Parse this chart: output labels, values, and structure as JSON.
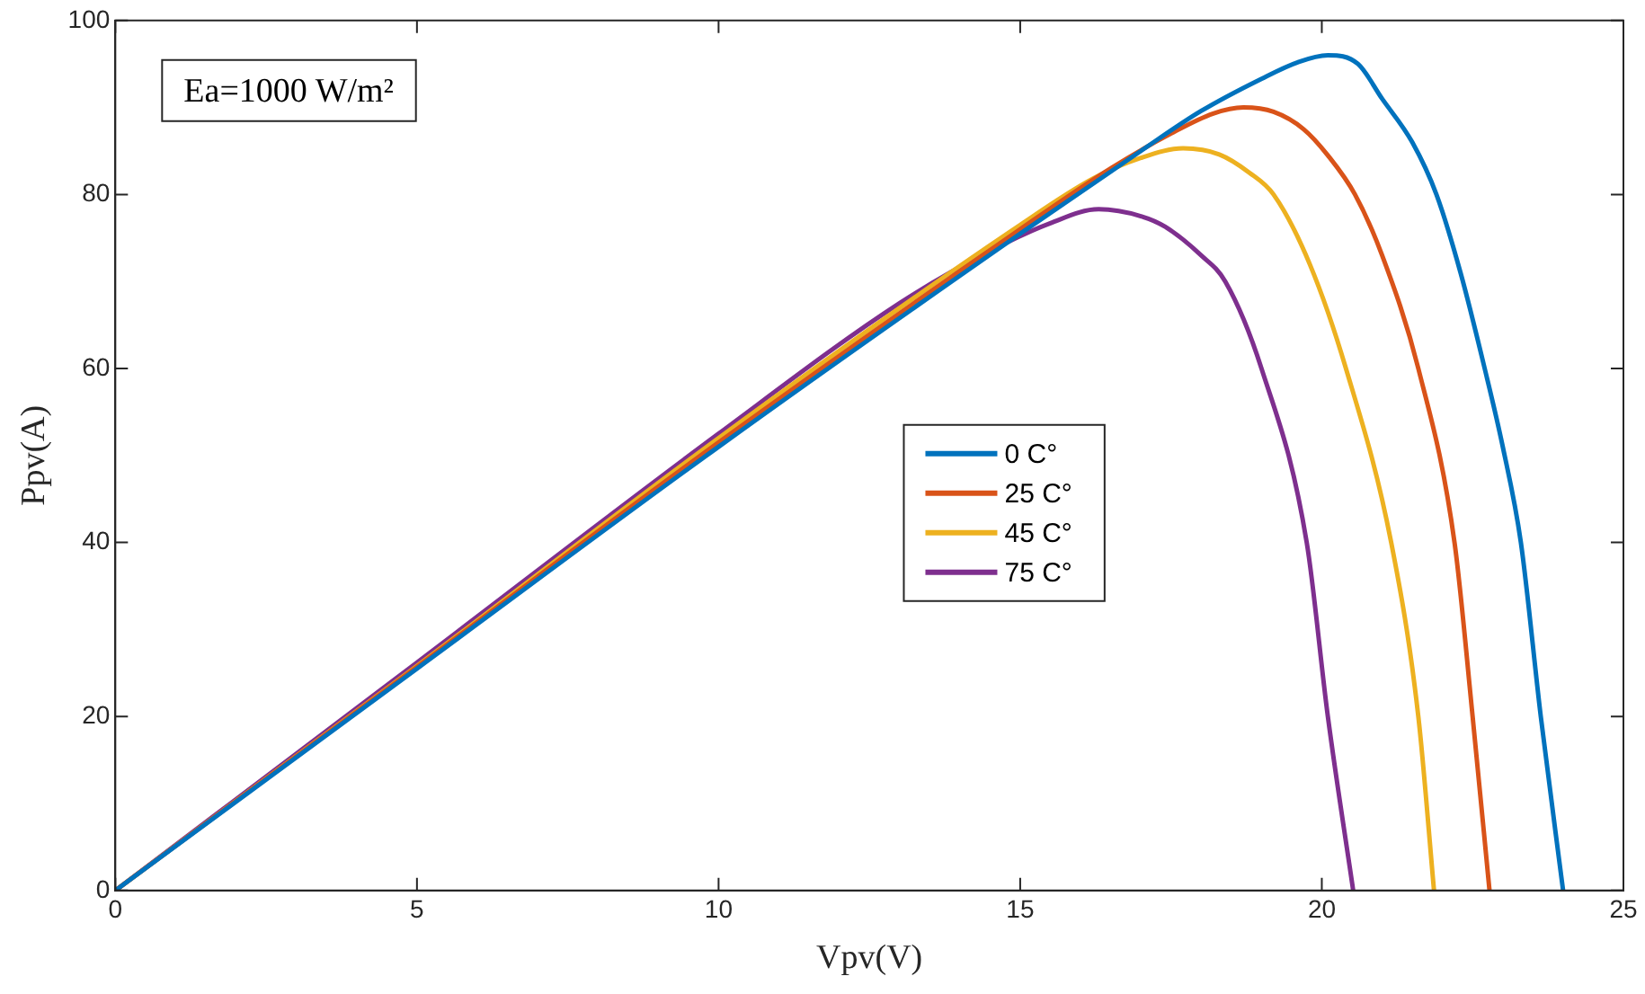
{
  "chart_data": {
    "type": "line",
    "xlabel": "Vpv(V)",
    "ylabel": "Ppv(A)",
    "xlim": [
      0,
      25
    ],
    "xticks": [
      0,
      5,
      10,
      15,
      20,
      25
    ],
    "ylim": [
      0,
      100
    ],
    "yticks": [
      0,
      20,
      40,
      60,
      80,
      100
    ],
    "grid": false,
    "legend": "center",
    "marker": "none",
    "line_style": "solid",
    "annotations": [
      "Ea=1000 W/m²"
    ],
    "series": [
      {
        "name": "0 C°",
        "color": "#0072bd",
        "x": [
          0,
          5,
          10,
          15,
          17,
          18,
          19,
          19.6,
          20.1,
          20.6,
          21,
          21.5,
          21.9,
          22.3,
          22.7,
          23,
          23.3,
          23.63,
          24
        ],
        "values": [
          0,
          25.5,
          51,
          75.5,
          85,
          89.6,
          93.3,
          95.2,
          96,
          95,
          91,
          86,
          80,
          71,
          60,
          51,
          40,
          20,
          0
        ]
      },
      {
        "name": "25 C°",
        "color": "#d95319",
        "x": [
          0,
          5,
          10,
          15,
          16.5,
          17.5,
          18.2,
          18.7,
          19.2,
          19.7,
          20.1,
          20.55,
          21,
          21.6,
          22.2,
          22.5,
          22.78
        ],
        "values": [
          0,
          25.7,
          51.5,
          76,
          83,
          87,
          89.3,
          90,
          89.5,
          87.5,
          84.5,
          80,
          73,
          60,
          40,
          20,
          0
        ]
      },
      {
        "name": "45 C°",
        "color": "#edb120",
        "x": [
          0,
          5,
          10,
          15,
          16.2,
          17,
          17.7,
          18.3,
          18.8,
          19.2,
          19.8,
          20.4,
          21.15,
          21.6,
          21.86
        ],
        "values": [
          0,
          25.8,
          52,
          76.5,
          81.8,
          84.2,
          85.3,
          84.6,
          82.5,
          80,
          72,
          60,
          40,
          20,
          0
        ]
      },
      {
        "name": "75 C°",
        "color": "#7e2f8e",
        "x": [
          0,
          5,
          10,
          13,
          14.5,
          15.5,
          16.3,
          17,
          17.4,
          18,
          18.4,
          19,
          19.75,
          20.1,
          20.52
        ],
        "values": [
          0,
          26.2,
          52.5,
          67.5,
          73.5,
          76.7,
          78.3,
          77.5,
          76.3,
          73,
          70,
          60,
          40,
          20,
          0
        ]
      }
    ]
  }
}
